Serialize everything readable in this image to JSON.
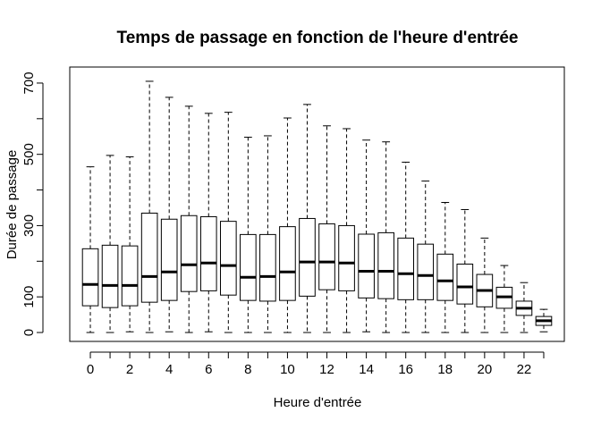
{
  "chart_data": {
    "type": "boxplot",
    "title": "Temps de passage en fonction de l'heure d'entrée",
    "xlabel": "Heure d'entrée",
    "ylabel": "Durée de passage",
    "categories": [
      0,
      1,
      2,
      3,
      4,
      5,
      6,
      7,
      8,
      9,
      10,
      11,
      12,
      13,
      14,
      15,
      16,
      17,
      18,
      19,
      20,
      21,
      22,
      23
    ],
    "x_tick_labels": [
      "0",
      "2",
      "4",
      "6",
      "8",
      "10",
      "12",
      "14",
      "16",
      "18",
      "20",
      "22"
    ],
    "y_ticks": [
      0,
      100,
      300,
      500,
      700
    ],
    "ylim": [
      -25,
      745
    ],
    "boxes": [
      {
        "hour": 0,
        "min": 0,
        "q1": 75,
        "median": 135,
        "q3": 235,
        "max": 465
      },
      {
        "hour": 1,
        "min": 0,
        "q1": 70,
        "median": 132,
        "q3": 245,
        "max": 497
      },
      {
        "hour": 2,
        "min": 2,
        "q1": 75,
        "median": 132,
        "q3": 243,
        "max": 493
      },
      {
        "hour": 3,
        "min": 0,
        "q1": 85,
        "median": 157,
        "q3": 335,
        "max": 705
      },
      {
        "hour": 4,
        "min": 2,
        "q1": 90,
        "median": 170,
        "q3": 318,
        "max": 660
      },
      {
        "hour": 5,
        "min": 0,
        "q1": 115,
        "median": 190,
        "q3": 328,
        "max": 635
      },
      {
        "hour": 6,
        "min": 2,
        "q1": 117,
        "median": 195,
        "q3": 325,
        "max": 615
      },
      {
        "hour": 7,
        "min": 0,
        "q1": 105,
        "median": 188,
        "q3": 312,
        "max": 618
      },
      {
        "hour": 8,
        "min": 0,
        "q1": 90,
        "median": 155,
        "q3": 275,
        "max": 548
      },
      {
        "hour": 9,
        "min": 0,
        "q1": 88,
        "median": 157,
        "q3": 275,
        "max": 552
      },
      {
        "hour": 10,
        "min": 0,
        "q1": 90,
        "median": 170,
        "q3": 297,
        "max": 602
      },
      {
        "hour": 11,
        "min": 0,
        "q1": 102,
        "median": 198,
        "q3": 320,
        "max": 640
      },
      {
        "hour": 12,
        "min": 0,
        "q1": 120,
        "median": 198,
        "q3": 305,
        "max": 580
      },
      {
        "hour": 13,
        "min": 0,
        "q1": 117,
        "median": 195,
        "q3": 300,
        "max": 572
      },
      {
        "hour": 14,
        "min": 2,
        "q1": 97,
        "median": 172,
        "q3": 276,
        "max": 540
      },
      {
        "hour": 15,
        "min": 0,
        "q1": 95,
        "median": 172,
        "q3": 280,
        "max": 535
      },
      {
        "hour": 16,
        "min": 0,
        "q1": 92,
        "median": 165,
        "q3": 265,
        "max": 478
      },
      {
        "hour": 17,
        "min": 0,
        "q1": 92,
        "median": 160,
        "q3": 248,
        "max": 425
      },
      {
        "hour": 18,
        "min": 0,
        "q1": 90,
        "median": 145,
        "q3": 220,
        "max": 365
      },
      {
        "hour": 19,
        "min": 0,
        "q1": 80,
        "median": 128,
        "q3": 192,
        "max": 345
      },
      {
        "hour": 20,
        "min": 0,
        "q1": 72,
        "median": 118,
        "q3": 163,
        "max": 265
      },
      {
        "hour": 21,
        "min": 0,
        "q1": 68,
        "median": 100,
        "q3": 127,
        "max": 188
      },
      {
        "hour": 22,
        "min": 0,
        "q1": 48,
        "median": 68,
        "q3": 88,
        "max": 140
      },
      {
        "hour": 23,
        "min": 2,
        "q1": 20,
        "median": 33,
        "q3": 45,
        "max": 65
      }
    ]
  }
}
